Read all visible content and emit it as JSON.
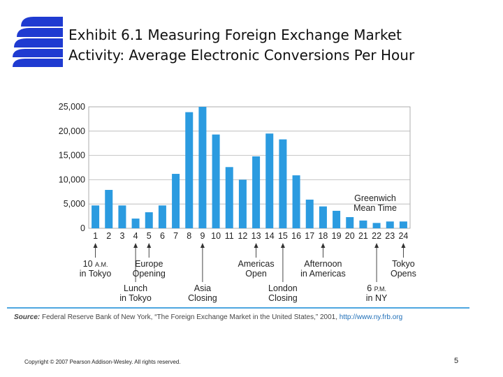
{
  "slide": {
    "title_line1": "Exhibit 6.1  Measuring Foreign Exchange Market",
    "title_line2": "Activity: Average Electronic Conversions Per Hour",
    "copyright": "Copyright © 2007 Pearson Addison-Wesley. All rights reserved.",
    "page_number": "5",
    "source_label": "Source:",
    "source_text": " Federal Reserve Bank of New York, “The Foreign Exchange Market in the United States,” 2001, ",
    "source_url": "http://www.ny.frb.org",
    "accent_color": "#4da6e0",
    "logo_color": "#1f3bd1"
  },
  "chart_data": {
    "type": "bar",
    "title": "Average Electronic Conversions Per Hour",
    "xlabel": "Greenwich Mean Time",
    "ylabel": "",
    "ylim": [
      0,
      25000
    ],
    "yticks": [
      0,
      5000,
      10000,
      15000,
      20000,
      25000
    ],
    "ytick_labels": [
      "0",
      "5,000",
      "10,000",
      "15,000",
      "20,000",
      "25,000"
    ],
    "grid": true,
    "bar_color": "#2b9be0",
    "categories": [
      "1",
      "2",
      "3",
      "4",
      "5",
      "6",
      "7",
      "8",
      "9",
      "10",
      "11",
      "12",
      "13",
      "14",
      "15",
      "16",
      "17",
      "18",
      "19",
      "20",
      "21",
      "22",
      "23",
      "24"
    ],
    "values": [
      4700,
      7900,
      4700,
      2000,
      3300,
      4700,
      11200,
      23900,
      25000,
      19300,
      12600,
      10000,
      14800,
      19500,
      18300,
      10900,
      5900,
      4500,
      3600,
      2300,
      1600,
      1100,
      1400,
      1400
    ],
    "axis_title": "Greenwich\nMean Time",
    "annotations": [
      {
        "hour": 1,
        "lines": [
          "10 A.M.",
          "in Tokyo"
        ],
        "level": 1
      },
      {
        "hour": 4,
        "lines": [
          "Lunch",
          "in Tokyo"
        ],
        "level": 2
      },
      {
        "hour": 5,
        "lines": [
          "Europe",
          "Opening"
        ],
        "level": 1
      },
      {
        "hour": 9,
        "lines": [
          "Asia",
          "Closing"
        ],
        "level": 2
      },
      {
        "hour": 13,
        "lines": [
          "Americas",
          "Open"
        ],
        "level": 1
      },
      {
        "hour": 15,
        "lines": [
          "London",
          "Closing"
        ],
        "level": 2
      },
      {
        "hour": 18,
        "lines": [
          "Afternoon",
          "in Americas"
        ],
        "level": 1
      },
      {
        "hour": 22,
        "lines": [
          "6 P.M.",
          "in NY"
        ],
        "level": 2
      },
      {
        "hour": 24,
        "lines": [
          "Tokyo",
          "Opens"
        ],
        "level": 1
      }
    ]
  }
}
